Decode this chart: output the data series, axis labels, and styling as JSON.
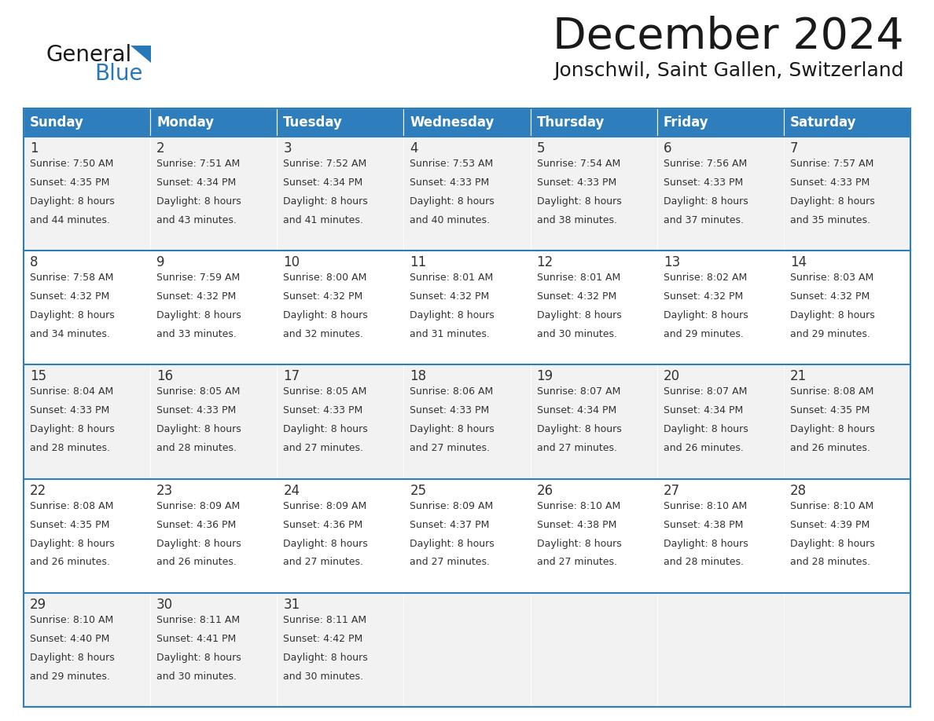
{
  "title": "December 2024",
  "subtitle": "Jonschwil, Saint Gallen, Switzerland",
  "header_color": "#2E7EBD",
  "header_text_color": "#FFFFFF",
  "day_names": [
    "Sunday",
    "Monday",
    "Tuesday",
    "Wednesday",
    "Thursday",
    "Friday",
    "Saturday"
  ],
  "weeks": [
    [
      {
        "day": "1",
        "sunrise": "7:50 AM",
        "sunset": "4:35 PM",
        "daylight_min": "44"
      },
      {
        "day": "2",
        "sunrise": "7:51 AM",
        "sunset": "4:34 PM",
        "daylight_min": "43"
      },
      {
        "day": "3",
        "sunrise": "7:52 AM",
        "sunset": "4:34 PM",
        "daylight_min": "41"
      },
      {
        "day": "4",
        "sunrise": "7:53 AM",
        "sunset": "4:33 PM",
        "daylight_min": "40"
      },
      {
        "day": "5",
        "sunrise": "7:54 AM",
        "sunset": "4:33 PM",
        "daylight_min": "38"
      },
      {
        "day": "6",
        "sunrise": "7:56 AM",
        "sunset": "4:33 PM",
        "daylight_min": "37"
      },
      {
        "day": "7",
        "sunrise": "7:57 AM",
        "sunset": "4:33 PM",
        "daylight_min": "35"
      }
    ],
    [
      {
        "day": "8",
        "sunrise": "7:58 AM",
        "sunset": "4:32 PM",
        "daylight_min": "34"
      },
      {
        "day": "9",
        "sunrise": "7:59 AM",
        "sunset": "4:32 PM",
        "daylight_min": "33"
      },
      {
        "day": "10",
        "sunrise": "8:00 AM",
        "sunset": "4:32 PM",
        "daylight_min": "32"
      },
      {
        "day": "11",
        "sunrise": "8:01 AM",
        "sunset": "4:32 PM",
        "daylight_min": "31"
      },
      {
        "day": "12",
        "sunrise": "8:01 AM",
        "sunset": "4:32 PM",
        "daylight_min": "30"
      },
      {
        "day": "13",
        "sunrise": "8:02 AM",
        "sunset": "4:32 PM",
        "daylight_min": "29"
      },
      {
        "day": "14",
        "sunrise": "8:03 AM",
        "sunset": "4:32 PM",
        "daylight_min": "29"
      }
    ],
    [
      {
        "day": "15",
        "sunrise": "8:04 AM",
        "sunset": "4:33 PM",
        "daylight_min": "28"
      },
      {
        "day": "16",
        "sunrise": "8:05 AM",
        "sunset": "4:33 PM",
        "daylight_min": "28"
      },
      {
        "day": "17",
        "sunrise": "8:05 AM",
        "sunset": "4:33 PM",
        "daylight_min": "27"
      },
      {
        "day": "18",
        "sunrise": "8:06 AM",
        "sunset": "4:33 PM",
        "daylight_min": "27"
      },
      {
        "day": "19",
        "sunrise": "8:07 AM",
        "sunset": "4:34 PM",
        "daylight_min": "27"
      },
      {
        "day": "20",
        "sunrise": "8:07 AM",
        "sunset": "4:34 PM",
        "daylight_min": "26"
      },
      {
        "day": "21",
        "sunrise": "8:08 AM",
        "sunset": "4:35 PM",
        "daylight_min": "26"
      }
    ],
    [
      {
        "day": "22",
        "sunrise": "8:08 AM",
        "sunset": "4:35 PM",
        "daylight_min": "26"
      },
      {
        "day": "23",
        "sunrise": "8:09 AM",
        "sunset": "4:36 PM",
        "daylight_min": "26"
      },
      {
        "day": "24",
        "sunrise": "8:09 AM",
        "sunset": "4:36 PM",
        "daylight_min": "27"
      },
      {
        "day": "25",
        "sunrise": "8:09 AM",
        "sunset": "4:37 PM",
        "daylight_min": "27"
      },
      {
        "day": "26",
        "sunrise": "8:10 AM",
        "sunset": "4:38 PM",
        "daylight_min": "27"
      },
      {
        "day": "27",
        "sunrise": "8:10 AM",
        "sunset": "4:38 PM",
        "daylight_min": "28"
      },
      {
        "day": "28",
        "sunrise": "8:10 AM",
        "sunset": "4:39 PM",
        "daylight_min": "28"
      }
    ],
    [
      {
        "day": "29",
        "sunrise": "8:10 AM",
        "sunset": "4:40 PM",
        "daylight_min": "29"
      },
      {
        "day": "30",
        "sunrise": "8:11 AM",
        "sunset": "4:41 PM",
        "daylight_min": "30"
      },
      {
        "day": "31",
        "sunrise": "8:11 AM",
        "sunset": "4:42 PM",
        "daylight_min": "30"
      },
      null,
      null,
      null,
      null
    ]
  ],
  "cell_bg_even": "#F2F2F2",
  "cell_bg_odd": "#FFFFFF",
  "header_color_hex": "#2E7EBD",
  "border_color": "#2E7EBD",
  "text_color": "#333333",
  "logo_general_color": "#1A1A1A",
  "logo_blue_color": "#2979B8",
  "title_fontsize": 40,
  "subtitle_fontsize": 18,
  "header_fontsize": 12,
  "day_num_fontsize": 12,
  "cell_fontsize": 9
}
